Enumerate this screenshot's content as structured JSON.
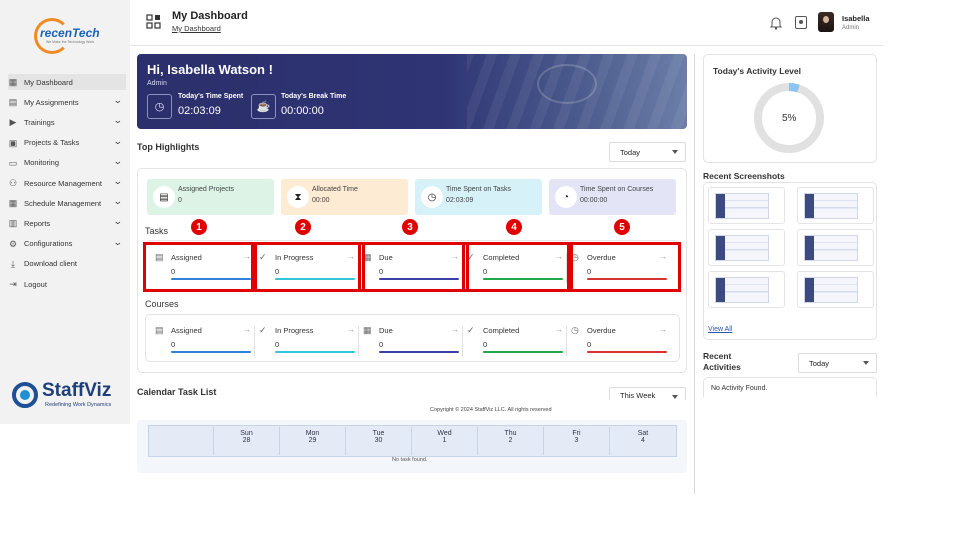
{
  "brand": {
    "logo_text": "recenTech",
    "logo_tagline": "We Make the Technology Work",
    "staffviz": "StaffViz",
    "staffviz_tagline": "Redefining Work Dynamics"
  },
  "sidebar": {
    "items": [
      {
        "label": "My Dashboard",
        "icon": "grid-icon",
        "active": true,
        "chevron": false
      },
      {
        "label": "My Assignments",
        "icon": "document-icon",
        "chevron": true
      },
      {
        "label": "Trainings",
        "icon": "play-icon",
        "chevron": true
      },
      {
        "label": "Projects & Tasks",
        "icon": "clipboard-icon",
        "chevron": true
      },
      {
        "label": "Monitoring",
        "icon": "monitor-icon",
        "chevron": true
      },
      {
        "label": "Resource Management",
        "icon": "people-icon",
        "chevron": true
      },
      {
        "label": "Schedule Management",
        "icon": "calendar-icon",
        "chevron": true
      },
      {
        "label": "Reports",
        "icon": "report-icon",
        "chevron": true
      },
      {
        "label": "Configurations",
        "icon": "gear-icon",
        "chevron": true
      },
      {
        "label": "Download client",
        "icon": "download-icon",
        "chevron": false
      },
      {
        "label": "Logout",
        "icon": "logout-icon",
        "chevron": false
      }
    ]
  },
  "header": {
    "title": "My Dashboard",
    "breadcrumb": "My Dashboard",
    "user_name": "Isabella",
    "user_role": "Admin"
  },
  "banner": {
    "greeting": "Hi, Isabella Watson !",
    "role": "Admin",
    "time_spent_label": "Today's Time Spent",
    "time_spent_value": "02:03:09",
    "break_label": "Today's Break Time",
    "break_value": "00:00:00"
  },
  "highlights": {
    "title": "Top Highlights",
    "filter": "Today",
    "cards": [
      {
        "label": "Assigned Projects",
        "value": "0",
        "bg": "#dcf3e6"
      },
      {
        "label": "Allocated Time",
        "value": "00:00",
        "bg": "#fdebd4"
      },
      {
        "label": "Time Spent on Tasks",
        "value": "02:03:09",
        "bg": "#d7f1f8"
      },
      {
        "label": "Time Spent on Courses",
        "value": "00:00:00",
        "bg": "#e3e5f7"
      }
    ]
  },
  "tasks": {
    "title": "Tasks",
    "items": [
      {
        "label": "Assigned",
        "value": "0",
        "color": "#2f80d6"
      },
      {
        "label": "In Progress",
        "value": "0",
        "color": "#32c5d7"
      },
      {
        "label": "Due",
        "value": "0",
        "color": "#3c3fa8"
      },
      {
        "label": "Completed",
        "value": "0",
        "color": "#22a64a"
      },
      {
        "label": "Overdue",
        "value": "0",
        "color": "#d93232"
      }
    ]
  },
  "annotations": [
    "1",
    "2",
    "3",
    "4",
    "5"
  ],
  "courses": {
    "title": "Courses",
    "items": [
      {
        "label": "Assigned",
        "value": "0",
        "color": "#2f80d6"
      },
      {
        "label": "In Progress",
        "value": "0",
        "color": "#32c5d7"
      },
      {
        "label": "Due",
        "value": "0",
        "color": "#3c3fa8"
      },
      {
        "label": "Completed",
        "value": "0",
        "color": "#22a64a"
      },
      {
        "label": "Overdue",
        "value": "0",
        "color": "#d93232"
      }
    ]
  },
  "calendar": {
    "title": "Calendar Task List",
    "filter": "This Week",
    "days": [
      {
        "day": "Sun",
        "date": "28"
      },
      {
        "day": "Mon",
        "date": "29"
      },
      {
        "day": "Tue",
        "date": "30"
      },
      {
        "day": "Wed",
        "date": "1"
      },
      {
        "day": "Thu",
        "date": "2"
      },
      {
        "day": "Fri",
        "date": "3"
      },
      {
        "day": "Sat",
        "date": "4"
      }
    ],
    "empty": "No task found."
  },
  "footer": {
    "copyright": "Copyright © 2024 StaffViz LLC. All rights reserved"
  },
  "activity": {
    "title": "Today's Activity Level",
    "percent_label": "5%",
    "percent": 5
  },
  "screenshots": {
    "title": "Recent Screenshots",
    "view_all": "View All"
  },
  "recent_activities": {
    "title": "Recent Activities",
    "filter": "Today",
    "empty": "No Activity Found."
  }
}
